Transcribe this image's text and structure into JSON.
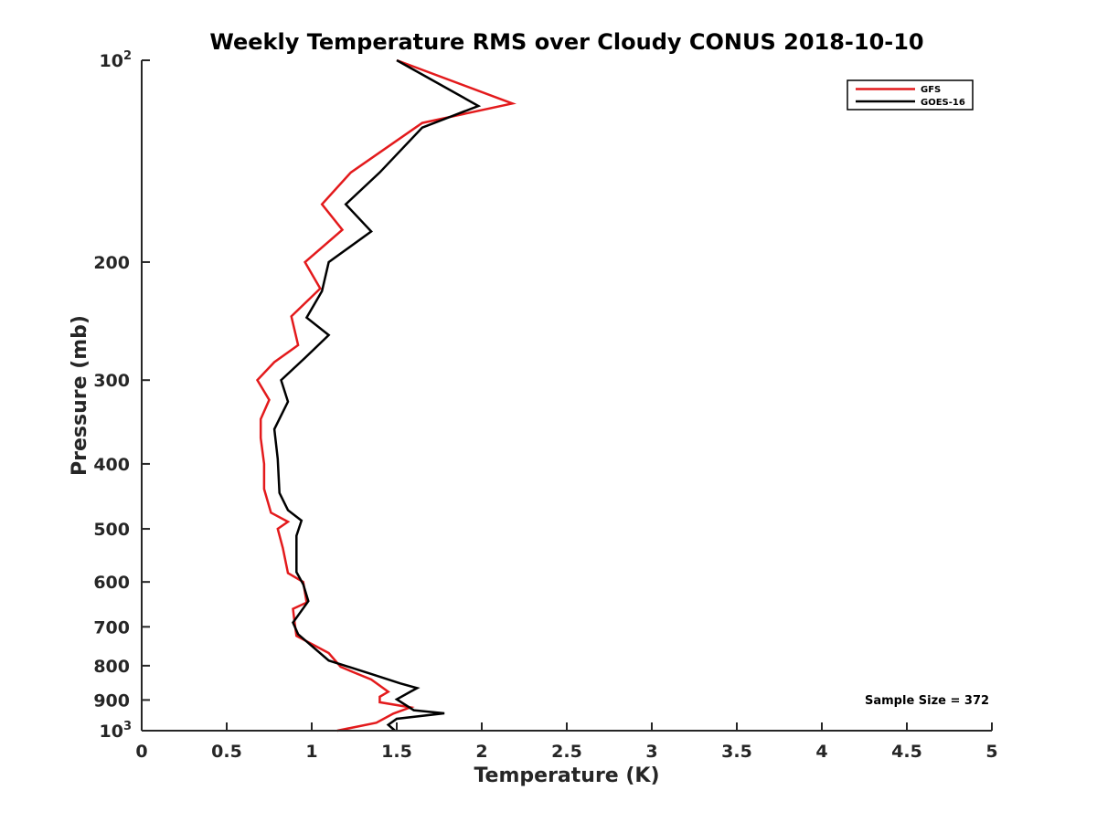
{
  "chart_data": {
    "type": "line",
    "title": "Weekly Temperature RMS over Cloudy CONUS 2018-10-10",
    "xlabel": "Temperature (K)",
    "ylabel": "Pressure (mb)",
    "xlim": [
      0,
      5
    ],
    "ylim": [
      100,
      1000
    ],
    "y_scale": "log",
    "y_reversed": true,
    "grid": false,
    "legend_position": "top-right",
    "x_ticks": [
      {
        "value": 0,
        "label": "0"
      },
      {
        "value": 0.5,
        "label": "0.5"
      },
      {
        "value": 1,
        "label": "1"
      },
      {
        "value": 1.5,
        "label": "1.5"
      },
      {
        "value": 2,
        "label": "2"
      },
      {
        "value": 2.5,
        "label": "2.5"
      },
      {
        "value": 3,
        "label": "3"
      },
      {
        "value": 3.5,
        "label": "3.5"
      },
      {
        "value": 4,
        "label": "4"
      },
      {
        "value": 4.5,
        "label": "4.5"
      },
      {
        "value": 5,
        "label": "5"
      }
    ],
    "y_ticks": [
      {
        "value": 100,
        "label": "10",
        "sup": "2"
      },
      {
        "value": 200,
        "label": "200"
      },
      {
        "value": 300,
        "label": "300"
      },
      {
        "value": 400,
        "label": "400"
      },
      {
        "value": 500,
        "label": "500"
      },
      {
        "value": 600,
        "label": "600"
      },
      {
        "value": 700,
        "label": "700"
      },
      {
        "value": 800,
        "label": "800"
      },
      {
        "value": 900,
        "label": "900"
      },
      {
        "value": 1000,
        "label": "10",
        "sup": "3"
      }
    ],
    "annotation": "Sample Size = 372",
    "series": [
      {
        "name": "GFS",
        "color": "#e31a1c",
        "points": [
          {
            "x": 1.5,
            "y": 100
          },
          {
            "x": 2.18,
            "y": 116
          },
          {
            "x": 1.65,
            "y": 124
          },
          {
            "x": 1.23,
            "y": 147
          },
          {
            "x": 1.06,
            "y": 164
          },
          {
            "x": 1.18,
            "y": 179
          },
          {
            "x": 0.96,
            "y": 200
          },
          {
            "x": 1.05,
            "y": 219
          },
          {
            "x": 0.88,
            "y": 241
          },
          {
            "x": 0.92,
            "y": 266
          },
          {
            "x": 0.78,
            "y": 282
          },
          {
            "x": 0.68,
            "y": 300
          },
          {
            "x": 0.75,
            "y": 321
          },
          {
            "x": 0.7,
            "y": 343
          },
          {
            "x": 0.7,
            "y": 366
          },
          {
            "x": 0.72,
            "y": 400
          },
          {
            "x": 0.72,
            "y": 436
          },
          {
            "x": 0.76,
            "y": 473
          },
          {
            "x": 0.86,
            "y": 488
          },
          {
            "x": 0.8,
            "y": 500
          },
          {
            "x": 0.83,
            "y": 534
          },
          {
            "x": 0.86,
            "y": 582
          },
          {
            "x": 0.95,
            "y": 600
          },
          {
            "x": 0.97,
            "y": 644
          },
          {
            "x": 0.89,
            "y": 658
          },
          {
            "x": 0.9,
            "y": 692
          },
          {
            "x": 0.91,
            "y": 722
          },
          {
            "x": 1.1,
            "y": 766
          },
          {
            "x": 1.17,
            "y": 803
          },
          {
            "x": 1.25,
            "y": 819
          },
          {
            "x": 1.35,
            "y": 839
          },
          {
            "x": 1.45,
            "y": 875
          },
          {
            "x": 1.4,
            "y": 890
          },
          {
            "x": 1.4,
            "y": 907
          },
          {
            "x": 1.58,
            "y": 923
          },
          {
            "x": 1.48,
            "y": 943
          },
          {
            "x": 1.38,
            "y": 973
          },
          {
            "x": 1.15,
            "y": 1000
          }
        ]
      },
      {
        "name": "GOES-16",
        "color": "#000000",
        "points": [
          {
            "x": 1.5,
            "y": 100
          },
          {
            "x": 1.98,
            "y": 117
          },
          {
            "x": 1.65,
            "y": 126
          },
          {
            "x": 1.4,
            "y": 147
          },
          {
            "x": 1.2,
            "y": 164
          },
          {
            "x": 1.35,
            "y": 180
          },
          {
            "x": 1.1,
            "y": 200
          },
          {
            "x": 1.06,
            "y": 221
          },
          {
            "x": 0.97,
            "y": 242
          },
          {
            "x": 1.1,
            "y": 257
          },
          {
            "x": 0.96,
            "y": 278
          },
          {
            "x": 0.82,
            "y": 300
          },
          {
            "x": 0.86,
            "y": 323
          },
          {
            "x": 0.78,
            "y": 355
          },
          {
            "x": 0.8,
            "y": 393
          },
          {
            "x": 0.81,
            "y": 442
          },
          {
            "x": 0.86,
            "y": 469
          },
          {
            "x": 0.94,
            "y": 486
          },
          {
            "x": 0.91,
            "y": 512
          },
          {
            "x": 0.91,
            "y": 580
          },
          {
            "x": 0.95,
            "y": 605
          },
          {
            "x": 0.98,
            "y": 641
          },
          {
            "x": 0.89,
            "y": 690
          },
          {
            "x": 0.92,
            "y": 718
          },
          {
            "x": 1.1,
            "y": 786
          },
          {
            "x": 1.35,
            "y": 823
          },
          {
            "x": 1.52,
            "y": 850
          },
          {
            "x": 1.62,
            "y": 864
          },
          {
            "x": 1.58,
            "y": 875
          },
          {
            "x": 1.5,
            "y": 898
          },
          {
            "x": 1.6,
            "y": 932
          },
          {
            "x": 1.78,
            "y": 942
          },
          {
            "x": 1.5,
            "y": 960
          },
          {
            "x": 1.45,
            "y": 980
          },
          {
            "x": 1.49,
            "y": 1000
          }
        ]
      }
    ]
  }
}
